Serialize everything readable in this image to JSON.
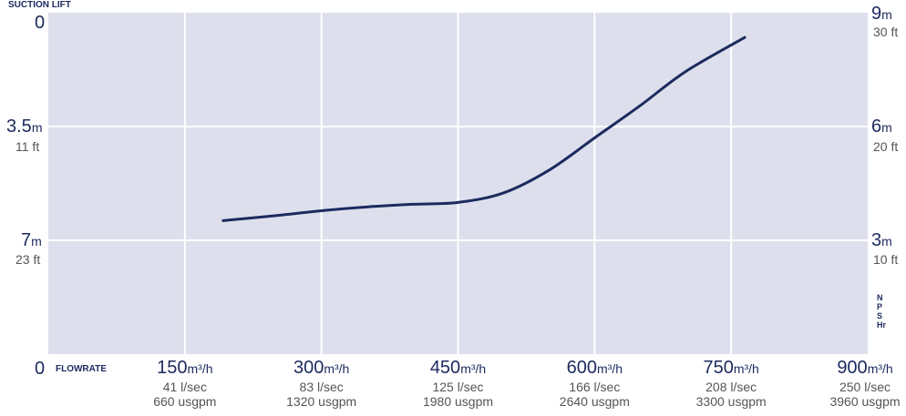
{
  "chart_data": {
    "type": "line",
    "title": "",
    "left_axis": {
      "label": "SUCTION LIFT",
      "ticks": [
        {
          "value": "0",
          "unit": "",
          "sub": ""
        },
        {
          "value": "3.5",
          "unit": "m",
          "sub": "11 ft"
        },
        {
          "value": "7",
          "unit": "m",
          "sub": "23 ft"
        }
      ]
    },
    "right_axis": {
      "label": "NPSHr",
      "ticks": [
        {
          "value": "9",
          "unit": "m",
          "sub": "30 ft",
          "num": 9
        },
        {
          "value": "6",
          "unit": "m",
          "sub": "20 ft",
          "num": 6
        },
        {
          "value": "3",
          "unit": "m",
          "sub": "10 ft",
          "num": 3
        }
      ],
      "range": [
        0,
        9
      ]
    },
    "x_axis": {
      "label": "FLOWRATE",
      "origin": "0",
      "range": [
        0,
        900
      ],
      "ticks": [
        {
          "value": "150",
          "num": 150,
          "unit": "m³/h",
          "sub1": "41 l/sec",
          "sub2": "660 usgpm"
        },
        {
          "value": "300",
          "num": 300,
          "unit": "m³/h",
          "sub1": "83 l/sec",
          "sub2": "1320 usgpm"
        },
        {
          "value": "450",
          "num": 450,
          "unit": "m³/h",
          "sub1": "125 l/sec",
          "sub2": "1980 usgpm"
        },
        {
          "value": "600",
          "num": 600,
          "unit": "m³/h",
          "sub1": "166 l/sec",
          "sub2": "2640 usgpm"
        },
        {
          "value": "750",
          "num": 750,
          "unit": "m³/h",
          "sub1": "208 l/sec",
          "sub2": "3300 usgpm"
        },
        {
          "value": "900",
          "num": 900,
          "unit": "m³/h",
          "sub1": "250 l/sec",
          "sub2": "3960 usgpm"
        }
      ]
    },
    "series": [
      {
        "x": [
          192,
          250,
          300,
          350,
          400,
          450,
          500,
          550,
          600,
          650,
          700,
          765
        ],
        "y": [
          3.52,
          3.65,
          3.78,
          3.88,
          3.95,
          4.0,
          4.25,
          4.85,
          5.7,
          6.55,
          7.45,
          8.35
        ]
      }
    ],
    "grid": true,
    "colors": {
      "line": "#1c2a5e",
      "plot_bg": "#dde0ec",
      "grid": "#ffffff",
      "text": "#1c2a5e"
    }
  }
}
